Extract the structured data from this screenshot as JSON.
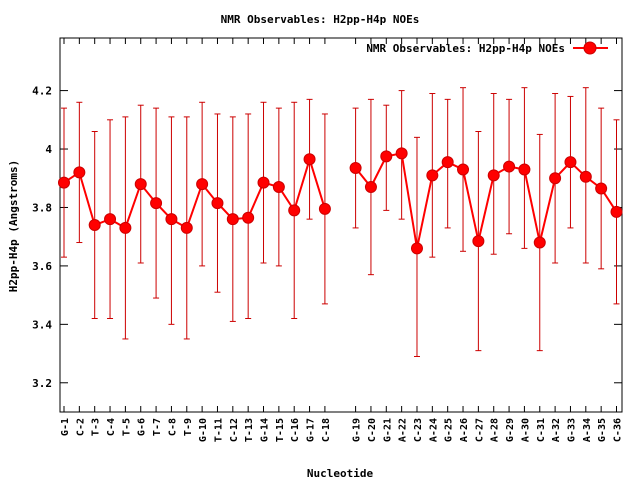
{
  "chart_data": {
    "type": "line",
    "title": "NMR Observables: H2pp-H4p NOEs",
    "xlabel": "Nucleotide",
    "ylabel": "H2pp-H4p (Angstroms)",
    "ylim": [
      3.1,
      4.38
    ],
    "yticks": [
      3.2,
      3.4,
      3.6,
      3.8,
      4,
      4.2
    ],
    "ytick_labels": [
      "3.2",
      "3.4",
      "3.6",
      "3.8",
      "4",
      "4.2"
    ],
    "legend": {
      "label": "NMR Observables: H2pp-H4p NOEs",
      "placement": "top-right"
    },
    "colors": {
      "series": "#ff0000",
      "errorbar": "#cc0000",
      "axis": "#000000"
    },
    "series": [
      {
        "name": "NMR Observables: H2pp-H4p NOEs",
        "segments": [
          [
            {
              "label": "G-1",
              "y": 3.885,
              "low": 3.63,
              "high": 4.14
            },
            {
              "label": "C-2",
              "y": 3.92,
              "low": 3.68,
              "high": 4.16
            },
            {
              "label": "T-3",
              "y": 3.74,
              "low": 3.42,
              "high": 4.06
            },
            {
              "label": "C-4",
              "y": 3.76,
              "low": 3.42,
              "high": 4.1
            },
            {
              "label": "T-5",
              "y": 3.73,
              "low": 3.35,
              "high": 4.11
            },
            {
              "label": "G-6",
              "y": 3.88,
              "low": 3.61,
              "high": 4.15
            },
            {
              "label": "T-7",
              "y": 3.815,
              "low": 3.49,
              "high": 4.14
            },
            {
              "label": "C-8",
              "y": 3.76,
              "low": 3.4,
              "high": 4.11
            },
            {
              "label": "T-9",
              "y": 3.73,
              "low": 3.35,
              "high": 4.11
            },
            {
              "label": "G-10",
              "y": 3.88,
              "low": 3.6,
              "high": 4.16
            },
            {
              "label": "T-11",
              "y": 3.815,
              "low": 3.51,
              "high": 4.12
            },
            {
              "label": "C-12",
              "y": 3.76,
              "low": 3.41,
              "high": 4.11
            },
            {
              "label": "T-13",
              "y": 3.765,
              "low": 3.42,
              "high": 4.12
            },
            {
              "label": "G-14",
              "y": 3.885,
              "low": 3.61,
              "high": 4.16
            },
            {
              "label": "T-15",
              "y": 3.87,
              "low": 3.6,
              "high": 4.14
            },
            {
              "label": "C-16",
              "y": 3.79,
              "low": 3.42,
              "high": 4.16
            },
            {
              "label": "G-17",
              "y": 3.965,
              "low": 3.76,
              "high": 4.17
            },
            {
              "label": "C-18",
              "y": 3.795,
              "low": 3.47,
              "high": 4.12
            }
          ],
          [
            {
              "label": "G-19",
              "y": 3.935,
              "low": 3.73,
              "high": 4.14
            },
            {
              "label": "C-20",
              "y": 3.87,
              "low": 3.57,
              "high": 4.17
            },
            {
              "label": "G-21",
              "y": 3.975,
              "low": 3.79,
              "high": 4.15
            },
            {
              "label": "A-22",
              "y": 3.985,
              "low": 3.76,
              "high": 4.2
            },
            {
              "label": "C-23",
              "y": 3.66,
              "low": 3.29,
              "high": 4.04
            },
            {
              "label": "A-24",
              "y": 3.91,
              "low": 3.63,
              "high": 4.19
            },
            {
              "label": "G-25",
              "y": 3.955,
              "low": 3.73,
              "high": 4.17
            },
            {
              "label": "A-26",
              "y": 3.93,
              "low": 3.65,
              "high": 4.21
            },
            {
              "label": "C-27",
              "y": 3.685,
              "low": 3.31,
              "high": 4.06
            },
            {
              "label": "A-28",
              "y": 3.91,
              "low": 3.64,
              "high": 4.19
            },
            {
              "label": "G-29",
              "y": 3.94,
              "low": 3.71,
              "high": 4.17
            },
            {
              "label": "A-30",
              "y": 3.93,
              "low": 3.66,
              "high": 4.21
            },
            {
              "label": "C-31",
              "y": 3.68,
              "low": 3.31,
              "high": 4.05
            },
            {
              "label": "A-32",
              "y": 3.9,
              "low": 3.61,
              "high": 4.19
            },
            {
              "label": "G-33",
              "y": 3.955,
              "low": 3.73,
              "high": 4.18
            },
            {
              "label": "A-34",
              "y": 3.905,
              "low": 3.61,
              "high": 4.21
            },
            {
              "label": "G-35",
              "y": 3.865,
              "low": 3.59,
              "high": 4.14
            },
            {
              "label": "C-36",
              "y": 3.785,
              "low": 3.47,
              "high": 4.1
            }
          ]
        ]
      }
    ]
  }
}
